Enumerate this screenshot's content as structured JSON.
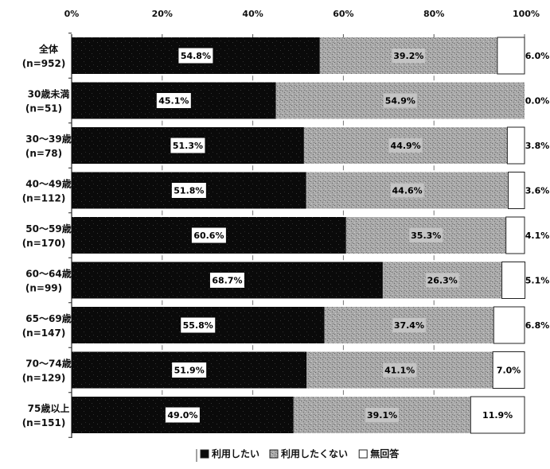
{
  "chart_data": {
    "type": "bar",
    "orientation": "horizontal",
    "stacked": true,
    "percent_axis": true,
    "xlim": [
      0,
      100
    ],
    "x_ticks": [
      "0%",
      "20%",
      "40%",
      "60%",
      "80%",
      "100%"
    ],
    "categories": [
      {
        "label": "全体",
        "n": "(n=952)"
      },
      {
        "label": "30歳未満",
        "n": "(n=51)"
      },
      {
        "label": "30～39歳",
        "n": "(n=78)"
      },
      {
        "label": "40～49歳",
        "n": "(n=112)"
      },
      {
        "label": "50～59歳",
        "n": "(n=170)"
      },
      {
        "label": "60～64歳",
        "n": "(n=99)"
      },
      {
        "label": "65～69歳",
        "n": "(n=147)"
      },
      {
        "label": "70～74歳",
        "n": "(n=129)"
      },
      {
        "label": "75歳以上",
        "n": "(n=151)"
      }
    ],
    "series": [
      {
        "name": "利用したい",
        "color": "#0a0a0a",
        "values": [
          54.8,
          45.1,
          51.3,
          51.8,
          60.6,
          68.7,
          55.8,
          51.9,
          49.0
        ],
        "labels": [
          "54.8%",
          "45.1%",
          "51.3%",
          "51.8%",
          "60.6%",
          "68.7%",
          "55.8%",
          "51.9%",
          "49.0%"
        ]
      },
      {
        "name": "利用したくない",
        "color": "#a8a8a8",
        "values": [
          39.2,
          54.9,
          44.9,
          44.6,
          35.3,
          26.3,
          37.4,
          41.1,
          39.1
        ],
        "labels": [
          "39.2%",
          "54.9%",
          "44.9%",
          "44.6%",
          "35.3%",
          "26.3%",
          "37.4%",
          "41.1%",
          "39.1%"
        ]
      },
      {
        "name": "無回答",
        "color": "#ffffff",
        "values": [
          6.0,
          0.0,
          3.8,
          3.6,
          4.1,
          5.1,
          6.8,
          7.0,
          11.9
        ],
        "labels": [
          "6.0%",
          "0.0%",
          "3.8%",
          "3.6%",
          "4.1%",
          "5.1%",
          "6.8%",
          "7.0%",
          "11.9%"
        ]
      }
    ],
    "legend": {
      "position": "bottom"
    },
    "grid": false
  }
}
